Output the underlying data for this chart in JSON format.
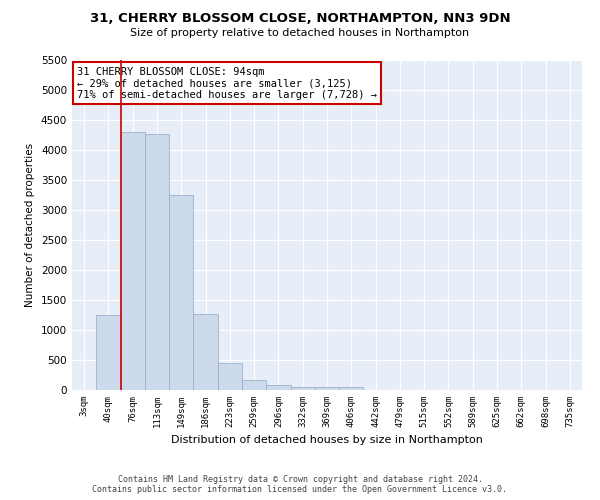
{
  "title": "31, CHERRY BLOSSOM CLOSE, NORTHAMPTON, NN3 9DN",
  "subtitle": "Size of property relative to detached houses in Northampton",
  "xlabel": "Distribution of detached houses by size in Northampton",
  "ylabel": "Number of detached properties",
  "footer_line1": "Contains HM Land Registry data © Crown copyright and database right 2024.",
  "footer_line2": "Contains public sector information licensed under the Open Government Licence v3.0.",
  "annotation_line1": "31 CHERRY BLOSSOM CLOSE: 94sqm",
  "annotation_line2": "← 29% of detached houses are smaller (3,125)",
  "annotation_line3": "71% of semi-detached houses are larger (7,728) →",
  "bar_color": "#ccdaec",
  "bar_edge_color": "#90a8c8",
  "vline_color": "#cc0000",
  "annotation_box_edge": "#cc0000",
  "plot_bg_color": "#e8eef8",
  "categories": [
    "3sqm",
    "40sqm",
    "76sqm",
    "113sqm",
    "149sqm",
    "186sqm",
    "223sqm",
    "259sqm",
    "296sqm",
    "332sqm",
    "369sqm",
    "406sqm",
    "442sqm",
    "479sqm",
    "515sqm",
    "552sqm",
    "589sqm",
    "625sqm",
    "662sqm",
    "698sqm",
    "735sqm"
  ],
  "values": [
    0,
    1250,
    4300,
    4270,
    3250,
    1270,
    450,
    170,
    90,
    55,
    45,
    45,
    0,
    0,
    0,
    0,
    0,
    0,
    0,
    0,
    0
  ],
  "ylim": [
    0,
    5500
  ],
  "yticks": [
    0,
    500,
    1000,
    1500,
    2000,
    2500,
    3000,
    3500,
    4000,
    4500,
    5000,
    5500
  ],
  "vline_x": 1.5
}
